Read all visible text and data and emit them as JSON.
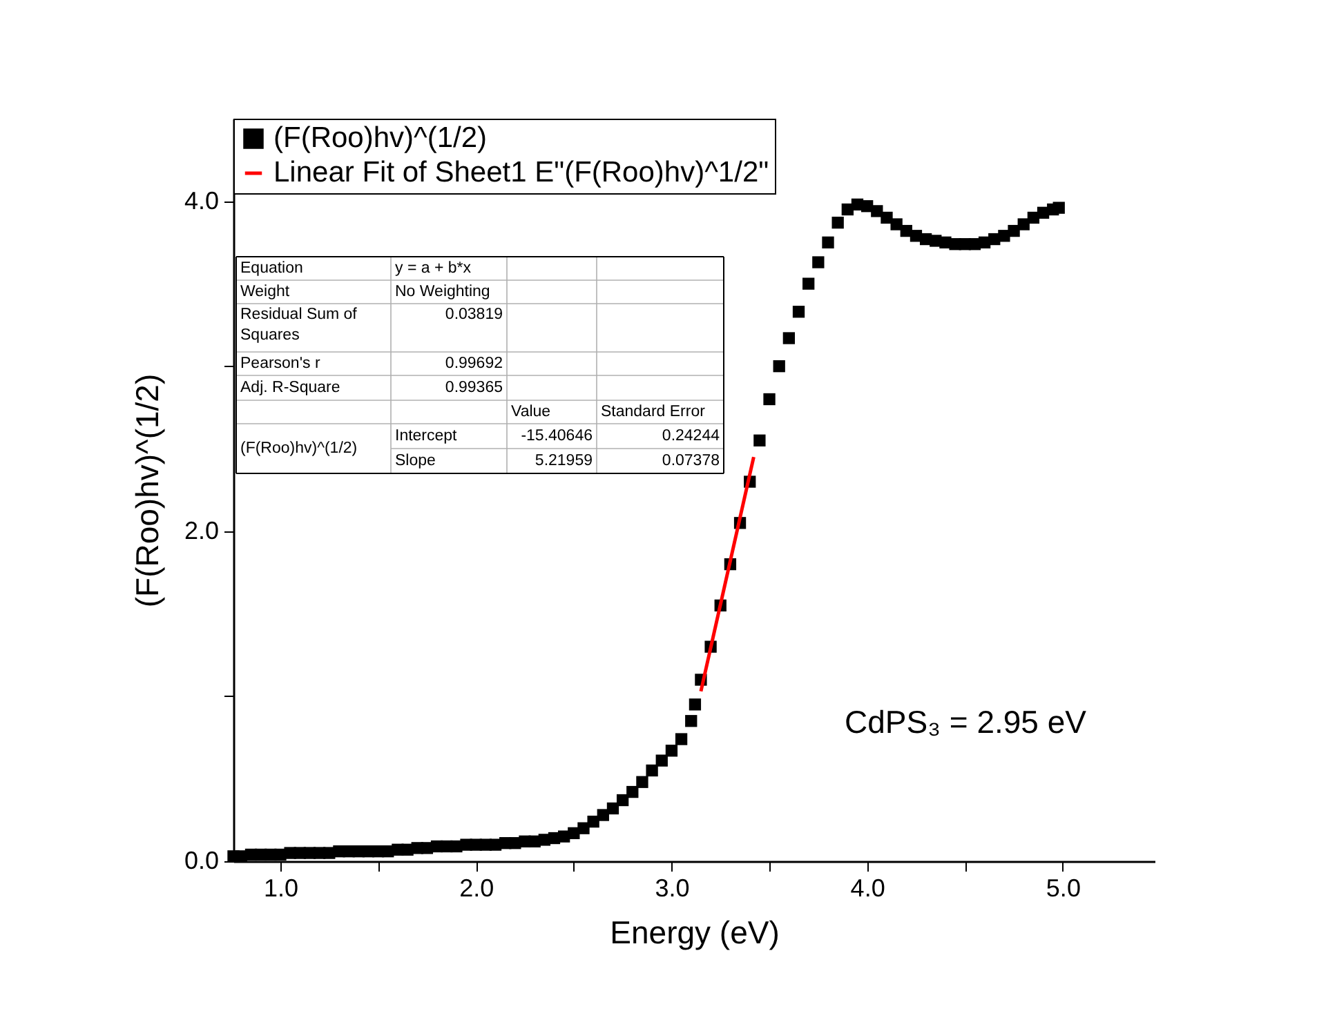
{
  "chart_data": {
    "type": "scatter",
    "xlabel": "Energy (eV)",
    "ylabel": "(F(Roo)hv)^(1/2)",
    "xlim": [
      0.76,
      5.47
    ],
    "ylim": [
      0,
      4.5
    ],
    "xticks": [
      {
        "value": 1,
        "label": "1.0"
      },
      {
        "value": 1.5,
        "label": null
      },
      {
        "value": 2,
        "label": "2.0"
      },
      {
        "value": 2.5,
        "label": null
      },
      {
        "value": 3,
        "label": "3.0"
      },
      {
        "value": 3.5,
        "label": null
      },
      {
        "value": 4,
        "label": "4.0"
      },
      {
        "value": 4.5,
        "label": null
      },
      {
        "value": 5,
        "label": "5.0"
      }
    ],
    "yticks": [
      {
        "value": 0,
        "label": "0.0"
      },
      {
        "value": 1,
        "label": null
      },
      {
        "value": 2,
        "label": "2.0"
      },
      {
        "value": 3,
        "label": null
      },
      {
        "value": 4,
        "label": "4.0"
      }
    ],
    "grid": false,
    "legend": "top left",
    "series": [
      {
        "name": "(F(Roo)hv)^(1/2)",
        "marker": "square",
        "color": "#000000",
        "x": [
          0.76,
          0.8,
          0.85,
          0.9,
          0.95,
          1.0,
          1.05,
          1.1,
          1.15,
          1.2,
          1.25,
          1.3,
          1.35,
          1.4,
          1.45,
          1.5,
          1.55,
          1.6,
          1.65,
          1.7,
          1.75,
          1.8,
          1.85,
          1.9,
          1.95,
          2.0,
          2.05,
          2.1,
          2.15,
          2.2,
          2.25,
          2.3,
          2.35,
          2.4,
          2.45,
          2.5,
          2.55,
          2.6,
          2.65,
          2.7,
          2.75,
          2.8,
          2.85,
          2.9,
          2.95,
          3.0,
          3.05,
          3.1,
          3.12,
          3.15,
          3.2,
          3.25,
          3.3,
          3.35,
          3.4,
          3.45,
          3.5,
          3.55,
          3.6,
          3.65,
          3.7,
          3.75,
          3.8,
          3.85,
          3.9,
          3.95,
          4.0,
          4.05,
          4.1,
          4.15,
          4.2,
          4.25,
          4.3,
          4.35,
          4.4,
          4.45,
          4.5,
          4.55,
          4.6,
          4.65,
          4.7,
          4.75,
          4.8,
          4.85,
          4.9,
          4.95,
          4.98
        ],
        "values": [
          0.03,
          0.03,
          0.04,
          0.04,
          0.04,
          0.04,
          0.05,
          0.05,
          0.05,
          0.05,
          0.05,
          0.06,
          0.06,
          0.06,
          0.06,
          0.06,
          0.06,
          0.07,
          0.07,
          0.08,
          0.08,
          0.09,
          0.09,
          0.09,
          0.1,
          0.1,
          0.1,
          0.1,
          0.11,
          0.11,
          0.12,
          0.12,
          0.13,
          0.14,
          0.15,
          0.17,
          0.2,
          0.24,
          0.28,
          0.32,
          0.37,
          0.42,
          0.48,
          0.55,
          0.61,
          0.67,
          0.74,
          0.85,
          0.95,
          1.1,
          1.3,
          1.55,
          1.8,
          2.05,
          2.3,
          2.55,
          2.8,
          3.0,
          3.17,
          3.33,
          3.5,
          3.63,
          3.75,
          3.87,
          3.95,
          3.98,
          3.97,
          3.94,
          3.9,
          3.86,
          3.82,
          3.79,
          3.77,
          3.76,
          3.75,
          3.74,
          3.74,
          3.74,
          3.75,
          3.77,
          3.79,
          3.82,
          3.86,
          3.9,
          3.93,
          3.95,
          3.96
        ]
      },
      {
        "name": "Linear Fit of Sheet1 E\"(F(Roo)hv)^1/2\"",
        "type": "line",
        "color": "#ff0000",
        "line_style": "solid",
        "x": [
          3.15,
          3.42
        ],
        "values": [
          1.03,
          2.45
        ]
      }
    ],
    "annotations": [
      "CdPS₃ = 2.95 eV",
      "Equation",
      "y = a + b*x",
      "Weight",
      "No Weighting",
      "Residual Sum of\nSquares",
      "0.03819",
      "Pearson's r",
      "0.99692",
      "Adj. R-Square",
      "0.99365",
      "Value",
      "Standard Error",
      "(F(Roo)hv)^(1/2)",
      "Intercept",
      "-15.40646",
      "0.24244",
      "Slope",
      "5.21959",
      "0.07378"
    ]
  }
}
